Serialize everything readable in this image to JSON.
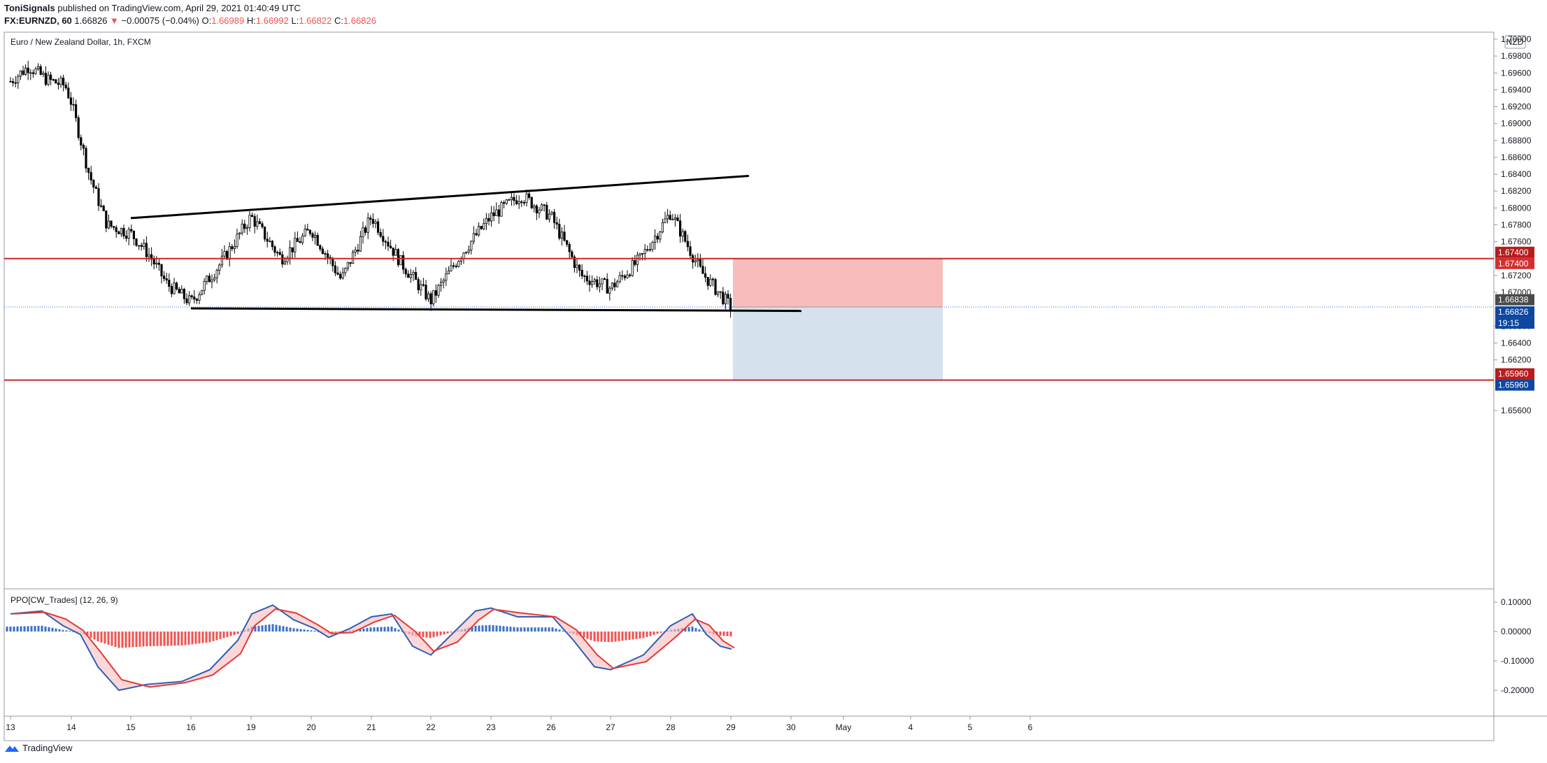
{
  "header": {
    "author": "ToniSignals",
    "published_text": "published on TradingView.com, April 29, 2021 01:40:49 UTC",
    "symbol_info": "FX:EURNZD, 60",
    "last_price": "1.66826",
    "change": "−0.00075 (−0.04%)",
    "open_label": "O:",
    "open": "1.66989",
    "high_label": "H:",
    "high": "1.66992",
    "low_label": "L:",
    "low": "1.66822",
    "close_label": "C:",
    "close": "1.66826"
  },
  "chart_title": "Euro / New Zealand Dollar, 1h, FXCM",
  "currency_badge": "NZD",
  "footer": {
    "brand": "TradingView"
  },
  "price_axis": {
    "ticks": [
      "1.70000",
      "1.69800",
      "1.69600",
      "1.69400",
      "1.69200",
      "1.69000",
      "1.68800",
      "1.68600",
      "1.68400",
      "1.68200",
      "1.68000",
      "1.67800",
      "1.67600",
      "1.67200",
      "1.67000",
      "1.66600",
      "1.66400",
      "1.66200",
      "1.65600"
    ],
    "tick_values": [
      1.7,
      1.698,
      1.696,
      1.694,
      1.692,
      1.69,
      1.688,
      1.686,
      1.684,
      1.682,
      1.68,
      1.678,
      1.676,
      1.672,
      1.67,
      1.666,
      1.664,
      1.662,
      1.656
    ]
  },
  "price_labels": [
    {
      "text": "1.67400",
      "value": 1.674,
      "color": "#b71c1c",
      "pos": "upper"
    },
    {
      "text": "1.67400",
      "value": 1.674,
      "color": "#d32f2f",
      "pos": "lower"
    },
    {
      "text": "1.66838",
      "value": 1.66838,
      "color": "#4a4a4a",
      "pos": "upper"
    },
    {
      "text": "1.66826",
      "value": 1.66826,
      "color": "#0d47a1",
      "pos": "lower"
    },
    {
      "text": "19:15",
      "value": 1.66826,
      "color": "#0d47a1",
      "pos": "timer"
    },
    {
      "text": "1.65960",
      "value": 1.6596,
      "color": "#b71c1c",
      "pos": "upper"
    },
    {
      "text": "1.65960",
      "value": 1.6596,
      "color": "#0d47a1",
      "pos": "lower"
    }
  ],
  "time_axis": [
    "13",
    "14",
    "15",
    "16",
    "19",
    "20",
    "21",
    "22",
    "23",
    "26",
    "27",
    "28",
    "29",
    "30",
    "May",
    "4",
    "5",
    "6"
  ],
  "indicator": {
    "title": "PPO[CW_Trades] (12, 26, 9)",
    "ticks": [
      "0.10000",
      "0.00000",
      "-0.10000",
      "-0.20000"
    ],
    "tick_values": [
      0.1,
      0.0,
      -0.1,
      -0.2
    ]
  },
  "colors": {
    "up_candle": "#ffffff",
    "down_candle": "#000000",
    "wick": "#000000",
    "resistance": "#c62828",
    "trendline": "#000000",
    "stop_zone": "#f8bcbc",
    "target_zone": "#d6e1ee",
    "ppo_line": "#2f5fb3",
    "signal_line": "#e53935",
    "hist_pos": "#3b6fc6",
    "hist_neg": "#ef5350"
  },
  "chart_data": {
    "type": "candlestick",
    "title": "Euro / New Zealand Dollar, 1h, FXCM",
    "xlabel": "",
    "ylabel": "",
    "ylim": [
      1.6545,
      1.7025
    ],
    "x_categories": [
      "13",
      "14",
      "15",
      "16",
      "19",
      "20",
      "21",
      "22",
      "23",
      "26",
      "27",
      "28",
      "29",
      "30",
      "May",
      "4",
      "5",
      "6"
    ],
    "close_path": [
      {
        "day": "13",
        "close": 1.695
      },
      {
        "day": "13.3",
        "close": 1.6968
      },
      {
        "day": "13.6",
        "close": 1.6952
      },
      {
        "day": "13.9",
        "close": 1.6945
      },
      {
        "day": "14",
        "close": 1.6925
      },
      {
        "day": "14.3",
        "close": 1.684
      },
      {
        "day": "14.6",
        "close": 1.678
      },
      {
        "day": "15",
        "close": 1.677
      },
      {
        "day": "15.3",
        "close": 1.6745
      },
      {
        "day": "15.6",
        "close": 1.671
      },
      {
        "day": "16",
        "close": 1.6688
      },
      {
        "day": "16.5",
        "close": 1.6735
      },
      {
        "day": "19",
        "close": 1.679
      },
      {
        "day": "19.5",
        "close": 1.674
      },
      {
        "day": "20",
        "close": 1.6775
      },
      {
        "day": "20.5",
        "close": 1.6715
      },
      {
        "day": "21",
        "close": 1.679
      },
      {
        "day": "21.5",
        "close": 1.6735
      },
      {
        "day": "22",
        "close": 1.669
      },
      {
        "day": "22.5",
        "close": 1.6745
      },
      {
        "day": "23",
        "close": 1.679
      },
      {
        "day": "23.5",
        "close": 1.6815
      },
      {
        "day": "26",
        "close": 1.679
      },
      {
        "day": "26.5",
        "close": 1.672
      },
      {
        "day": "27",
        "close": 1.6705
      },
      {
        "day": "27.5",
        "close": 1.674
      },
      {
        "day": "28",
        "close": 1.6795
      },
      {
        "day": "28.5",
        "close": 1.6725
      },
      {
        "day": "29",
        "close": 1.66826
      }
    ],
    "annotations": {
      "upper_trendline": [
        {
          "day": "15",
          "price": 1.6788
        },
        {
          "day": "29.3",
          "price": 1.6838
        }
      ],
      "lower_trendline": [
        {
          "day": "16",
          "price": 1.6681
        },
        {
          "day": "30.2",
          "price": 1.6678
        }
      ],
      "resistance_level": 1.674,
      "target_level": 1.6596,
      "position": {
        "entry": 1.66826,
        "stop": 1.674,
        "target": 1.6596,
        "side": "short"
      }
    }
  }
}
